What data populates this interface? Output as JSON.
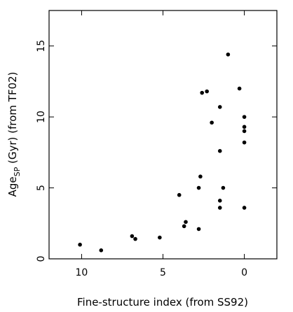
{
  "chart_data": {
    "type": "scatter",
    "title": "",
    "xlabel": "Fine-structure index (from SS92)",
    "ylabel": {
      "pre": "Age",
      "sub": "SP",
      "post": " (Gyr) (from TF02)"
    },
    "xlim": [
      12,
      -2
    ],
    "ylim": [
      0,
      17.5
    ],
    "x_reversed": true,
    "grid": false,
    "x_ticks": [
      10,
      5,
      0
    ],
    "x_tick_labels": [
      "10",
      "5",
      "0"
    ],
    "y_ticks": [
      0,
      5,
      10,
      15
    ],
    "y_tick_labels": [
      "0",
      "5",
      "10",
      "15"
    ],
    "marker_color": "#000000",
    "points": [
      {
        "x": 10.1,
        "y": 1.0
      },
      {
        "x": 8.8,
        "y": 0.6
      },
      {
        "x": 6.9,
        "y": 1.6
      },
      {
        "x": 6.7,
        "y": 1.4
      },
      {
        "x": 5.2,
        "y": 1.5
      },
      {
        "x": 4.0,
        "y": 4.5
      },
      {
        "x": 3.6,
        "y": 2.6
      },
      {
        "x": 3.7,
        "y": 2.3
      },
      {
        "x": 2.8,
        "y": 2.1
      },
      {
        "x": 2.8,
        "y": 5.0
      },
      {
        "x": 2.7,
        "y": 5.8
      },
      {
        "x": 2.6,
        "y": 11.7
      },
      {
        "x": 2.3,
        "y": 11.8
      },
      {
        "x": 2.0,
        "y": 9.6
      },
      {
        "x": 1.5,
        "y": 10.7
      },
      {
        "x": 1.5,
        "y": 7.6
      },
      {
        "x": 1.5,
        "y": 4.1
      },
      {
        "x": 1.5,
        "y": 3.6
      },
      {
        "x": 1.3,
        "y": 5.0
      },
      {
        "x": 1.0,
        "y": 14.4
      },
      {
        "x": 0.3,
        "y": 12.0
      },
      {
        "x": 0.0,
        "y": 10.0
      },
      {
        "x": 0.0,
        "y": 9.3
      },
      {
        "x": 0.0,
        "y": 9.0
      },
      {
        "x": 0.0,
        "y": 8.2
      },
      {
        "x": 0.0,
        "y": 3.6
      }
    ]
  }
}
